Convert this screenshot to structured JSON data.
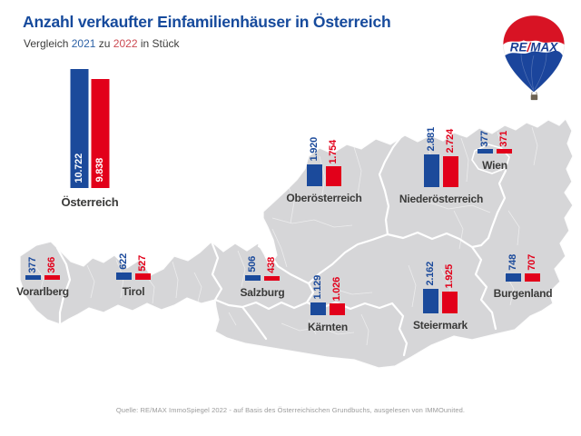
{
  "header": {
    "title": "Anzahl verkaufter Einfamilienhäuser in Österreich",
    "subtitle_prefix": "Vergleich",
    "year1": "2021",
    "subtitle_middle": "zu",
    "year2": "2022",
    "subtitle_suffix": "in Stück"
  },
  "logo": {
    "re": "RE",
    "slash": "/",
    "max": "MAX"
  },
  "colors": {
    "blue": "#1b4a9b",
    "red": "#e2001a",
    "title_blue": "#164a9c",
    "subtitle_year_blue": "#2e62a6",
    "subtitle_year_red": "#cc4a52",
    "map_gray": "#d6d6d8",
    "label_text": "#3a3a39",
    "footer_gray": "#9b9b9b"
  },
  "footer": {
    "source": "Quelle: RE/MAX ImmoSpiegel 2022 - auf Basis des Österreichischen Grundbuchs, ausgelesen von IMMOunited."
  },
  "chart_data": {
    "type": "bar",
    "title": "Anzahl verkaufter Einfamilienhäuser in Österreich",
    "subtitle": "Vergleich 2021 zu 2022 in Stück",
    "unit": "Stück",
    "series_names": [
      "2021",
      "2022"
    ],
    "series_colors": [
      "#1b4a9b",
      "#e2001a"
    ],
    "legend_position": "subtitle",
    "regions": [
      {
        "id": "oesterreich",
        "name": "Österreich",
        "v2021": 10722,
        "v2022": 9838,
        "label2021": "10.722",
        "label2022": "9.838"
      },
      {
        "id": "oberoesterreich",
        "name": "Oberösterreich",
        "v2021": 1920,
        "v2022": 1754,
        "label2021": "1.920",
        "label2022": "1.754"
      },
      {
        "id": "niederoesterreich",
        "name": "Niederösterreich",
        "v2021": 2881,
        "v2022": 2724,
        "label2021": "2.881",
        "label2022": "2.724"
      },
      {
        "id": "wien",
        "name": "Wien",
        "v2021": 377,
        "v2022": 371,
        "label2021": "377",
        "label2022": "371"
      },
      {
        "id": "vorarlberg",
        "name": "Vorarlberg",
        "v2021": 377,
        "v2022": 366,
        "label2021": "377",
        "label2022": "366"
      },
      {
        "id": "tirol",
        "name": "Tirol",
        "v2021": 622,
        "v2022": 527,
        "label2021": "622",
        "label2022": "527"
      },
      {
        "id": "salzburg",
        "name": "Salzburg",
        "v2021": 506,
        "v2022": 438,
        "label2021": "506",
        "label2022": "438"
      },
      {
        "id": "kaernten",
        "name": "Kärnten",
        "v2021": 1129,
        "v2022": 1026,
        "label2021": "1.129",
        "label2022": "1.026"
      },
      {
        "id": "steiermark",
        "name": "Steiermark",
        "v2021": 2162,
        "v2022": 1925,
        "label2021": "2.162",
        "label2022": "1.925"
      },
      {
        "id": "burgenland",
        "name": "Burgenland",
        "v2021": 748,
        "v2022": 707,
        "label2021": "748",
        "label2022": "707"
      }
    ]
  }
}
